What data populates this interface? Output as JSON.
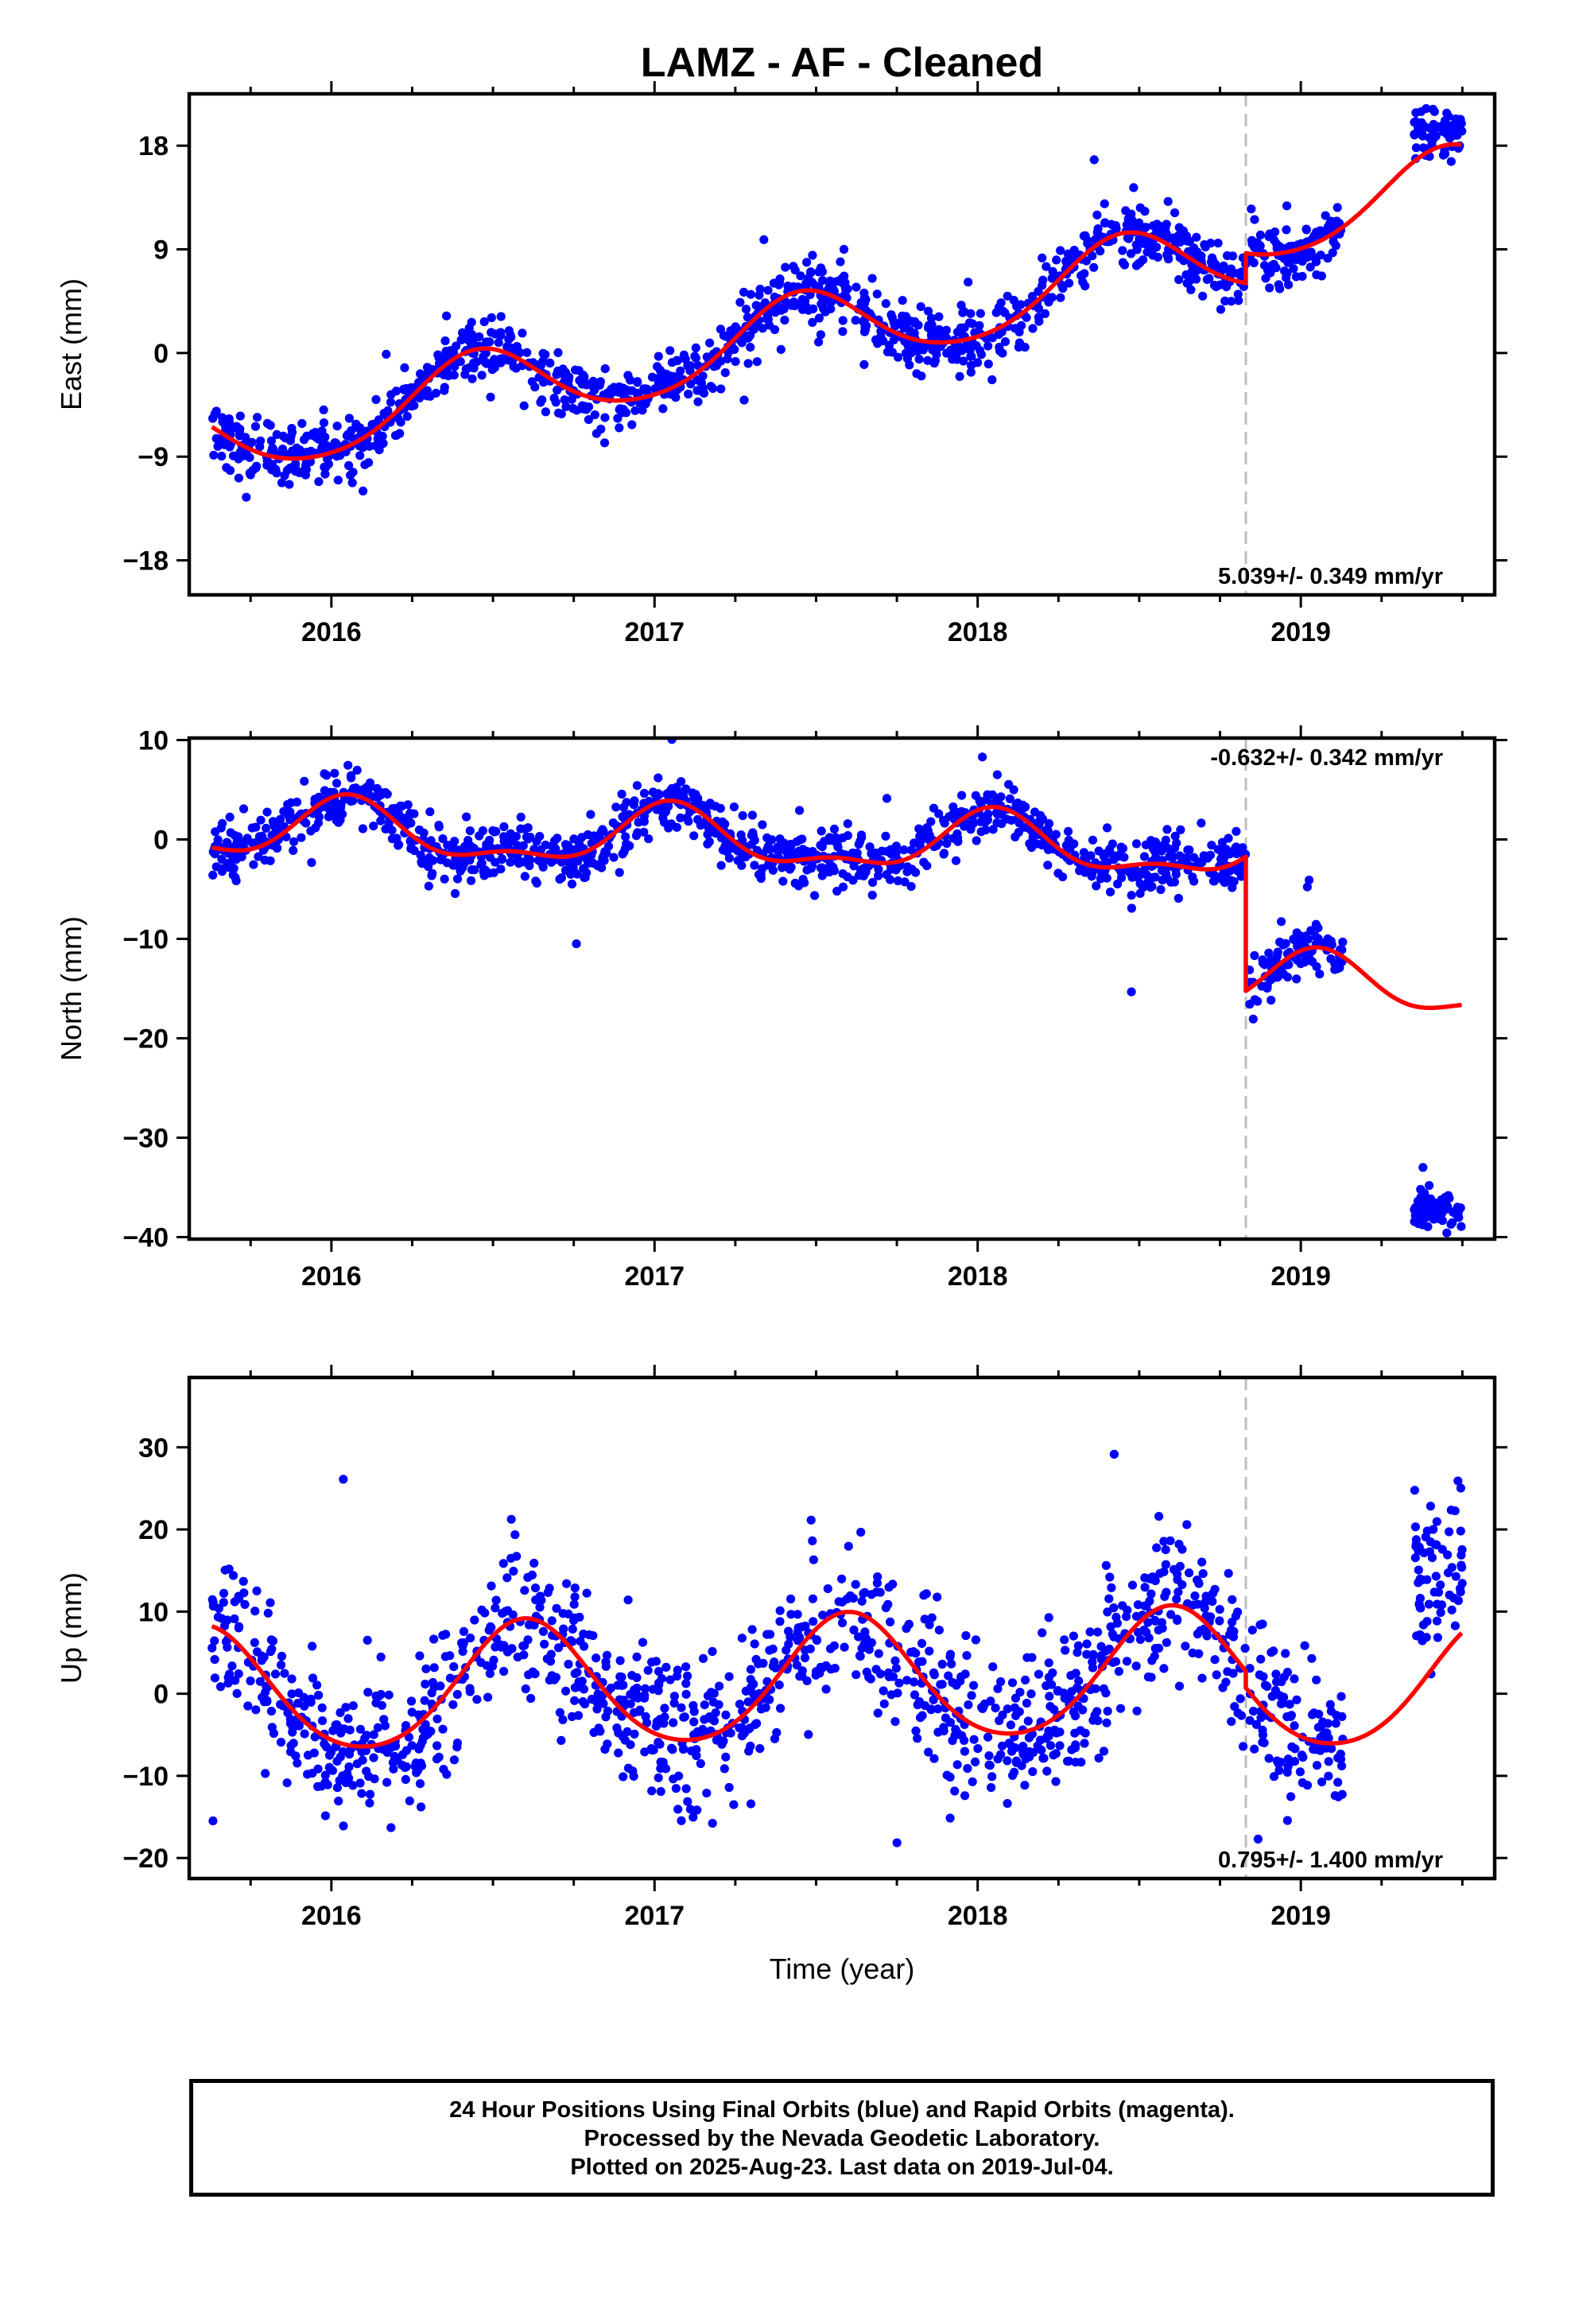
{
  "title": "LAMZ  - AF - Cleaned",
  "x_axis_label": "Time (year)",
  "footer": {
    "line1": "24 Hour Positions Using Final Orbits (blue) and Rapid Orbits (magenta).",
    "line2": "Processed by the Nevada Geodetic Laboratory.",
    "line3": "Plotted on 2025-Aug-23. Last data on 2019-Jul-04."
  },
  "colors": {
    "points": "#0000ff",
    "model": "#ff0000",
    "event_line": "#bfbfbf",
    "frame": "#000000"
  },
  "chart_data": [
    {
      "type": "scatter",
      "ylabel": "East (mm)",
      "xlim": [
        2015.56,
        2019.6
      ],
      "ylim": [
        -21,
        22.5
      ],
      "yticks": [
        -18,
        -9,
        0,
        9,
        18
      ],
      "xticks": [
        2016,
        2017,
        2018,
        2019
      ],
      "event_line_x": 2018.83,
      "rate_label": "5.039+/- 0.349 mm/yr",
      "rate_position": "bottom-right",
      "points_segments": [
        {
          "x_start": 2015.63,
          "x_end": 2018.83,
          "n": 1150,
          "scatter": 1.3
        },
        {
          "x_start": 2018.84,
          "x_end": 2019.13,
          "n": 110,
          "scatter": 1.2
        },
        {
          "x_start": 2019.35,
          "x_end": 2019.5,
          "n": 70,
          "scatter": 1.0,
          "center": 19.3
        }
      ],
      "model": {
        "intercept": -7.6,
        "t0": 2015.63,
        "trend": 5.039,
        "amp_annual": 3.4,
        "phase_peak": 2016.45,
        "amp_semi": 0.4,
        "step_at": 2018.83,
        "step": 2.6
      }
    },
    {
      "type": "scatter",
      "ylabel": "North (mm)",
      "xlim": [
        2015.56,
        2019.6
      ],
      "ylim": [
        -40.2,
        10.2
      ],
      "yticks": [
        -40,
        -30,
        -20,
        -10,
        0,
        10
      ],
      "xticks": [
        2016,
        2017,
        2018,
        2019
      ],
      "event_line_x": 2018.83,
      "rate_label": "-0.632+/- 0.342 mm/yr",
      "rate_position": "top-right",
      "points_segments": [
        {
          "x_start": 2015.63,
          "x_end": 2018.83,
          "n": 1150,
          "scatter": 1.4
        },
        {
          "x_start": 2018.84,
          "x_end": 2019.13,
          "n": 110,
          "scatter": 1.3
        },
        {
          "x_start": 2019.35,
          "x_end": 2019.5,
          "n": 70,
          "scatter": 1.0,
          "center": -37.2
        }
      ],
      "model": {
        "intercept": 0.9,
        "t0": 2015.63,
        "trend": -0.632,
        "amp_annual": 2.7,
        "phase_peak": 2016.05,
        "amp_semi": 1.2,
        "step_at": 2018.83,
        "step": -13.5
      }
    },
    {
      "type": "scatter",
      "ylabel": "Up (mm)",
      "xlim": [
        2015.56,
        2019.6
      ],
      "ylim": [
        -22.5,
        38.5
      ],
      "yticks": [
        -20,
        -10,
        0,
        10,
        20,
        30
      ],
      "xticks": [
        2016,
        2017,
        2018,
        2019
      ],
      "event_line_x": 2018.83,
      "rate_label": "0.795+/- 1.400 mm/yr",
      "rate_position": "bottom-right",
      "points_segments": [
        {
          "x_start": 2015.63,
          "x_end": 2018.83,
          "n": 1150,
          "scatter": 4.6
        },
        {
          "x_start": 2018.84,
          "x_end": 2019.13,
          "n": 110,
          "scatter": 4.2
        },
        {
          "x_start": 2019.35,
          "x_end": 2019.5,
          "n": 70,
          "scatter": 4.5,
          "center": 16.0
        }
      ],
      "model": {
        "intercept": 0.0,
        "t0": 2015.63,
        "trend": 0.795,
        "amp_annual": 7.6,
        "phase_peak": 2016.6,
        "amp_semi": 0.8,
        "step_at": 2018.83,
        "step": -2.0
      }
    }
  ]
}
